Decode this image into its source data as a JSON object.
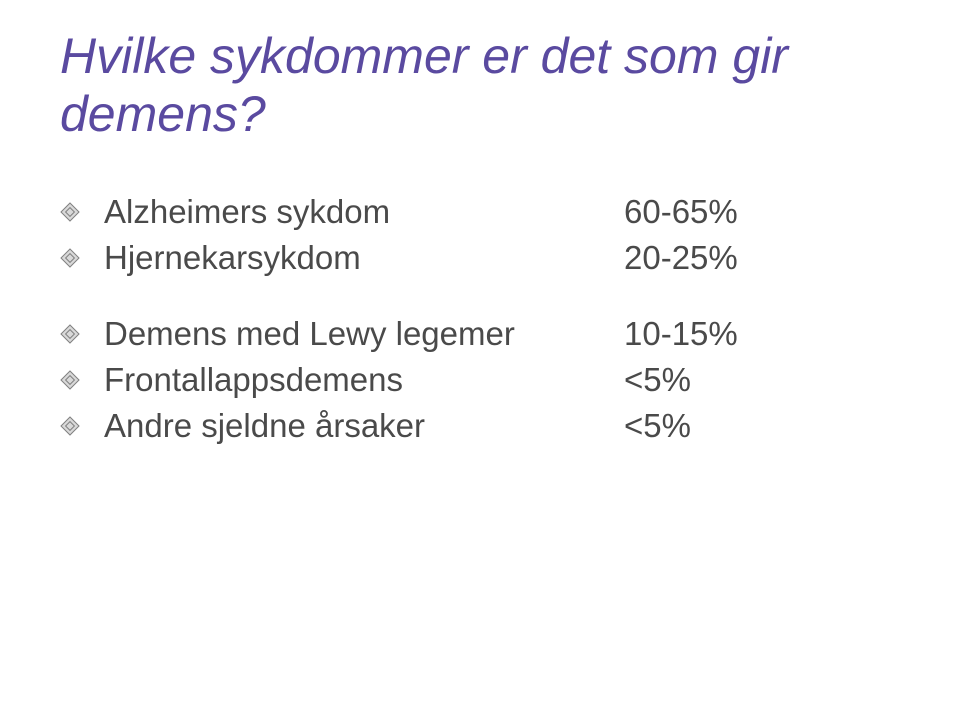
{
  "title": "Hvilke sykdommer er det som gir demens?",
  "title_color": "#5a4aa0",
  "body_color": "#4a4a4a",
  "bullet": {
    "fill": "#d9d9d9",
    "stroke": "#808080",
    "size": 20
  },
  "group1": [
    {
      "label": "Alzheimers sykdom",
      "value": "60-65%"
    },
    {
      "label": "Hjernekarsykdom",
      "value": "20-25%"
    }
  ],
  "group2": [
    {
      "label": "Demens med Lewy legemer",
      "value": "10-15%"
    },
    {
      "label": "Frontallappsdemens",
      "value": "<5%"
    },
    {
      "label": "Andre sjeldne årsaker",
      "value": "<5%"
    }
  ]
}
